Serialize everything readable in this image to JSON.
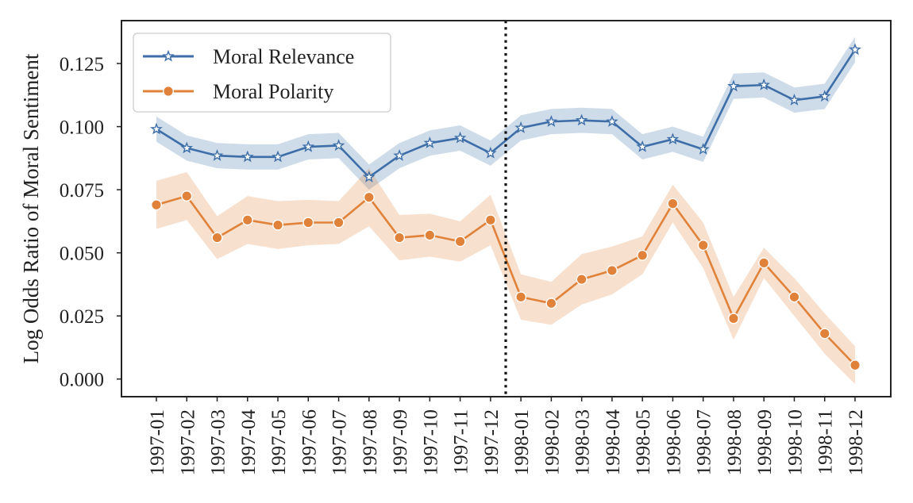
{
  "chart_data": {
    "type": "line",
    "title": "",
    "xlabel": "",
    "ylabel": "Log Odds Ratio of Moral Sentiment",
    "categories": [
      "1997-01",
      "1997-02",
      "1997-03",
      "1997-04",
      "1997-05",
      "1997-06",
      "1997-07",
      "1997-08",
      "1997-09",
      "1997-10",
      "1997-11",
      "1997-12",
      "1998-01",
      "1998-02",
      "1998-03",
      "1998-04",
      "1998-05",
      "1998-06",
      "1998-07",
      "1998-08",
      "1998-09",
      "1998-10",
      "1998-11",
      "1998-12"
    ],
    "ylim": [
      -0.007,
      0.142
    ],
    "yticks": [
      "0.000",
      "0.025",
      "0.050",
      "0.075",
      "0.100",
      "0.125"
    ],
    "grid": false,
    "legend_position": "top-left",
    "divider_at": "1998-01",
    "series": [
      {
        "name": "Moral Relevance",
        "color": "#3d6ea8",
        "marker": "star",
        "values": [
          0.099,
          0.0915,
          0.0885,
          0.088,
          0.088,
          0.092,
          0.0925,
          0.08,
          0.0885,
          0.0935,
          0.0955,
          0.0895,
          0.0995,
          0.102,
          0.1025,
          0.102,
          0.092,
          0.095,
          0.091,
          0.116,
          0.1165,
          0.1105,
          0.112,
          0.1305
        ],
        "band": 0.005
      },
      {
        "name": "Moral Polarity",
        "color": "#e0823a",
        "marker": "circle",
        "values": [
          0.069,
          0.0725,
          0.056,
          0.063,
          0.061,
          0.062,
          0.062,
          0.072,
          0.056,
          0.057,
          0.0545,
          0.063,
          0.0325,
          0.03,
          0.0395,
          0.043,
          0.049,
          0.0695,
          0.053,
          0.024,
          0.046,
          0.0325,
          0.018,
          0.0055
        ],
        "band": [
          0.0095,
          0.0095,
          0.0085,
          0.0095,
          0.0095,
          0.009,
          0.0085,
          0.0115,
          0.009,
          0.0085,
          0.008,
          0.01,
          0.009,
          0.0085,
          0.01,
          0.0095,
          0.0075,
          0.0075,
          0.009,
          0.0085,
          0.006,
          0.0075,
          0.008,
          0.0075
        ]
      }
    ]
  }
}
